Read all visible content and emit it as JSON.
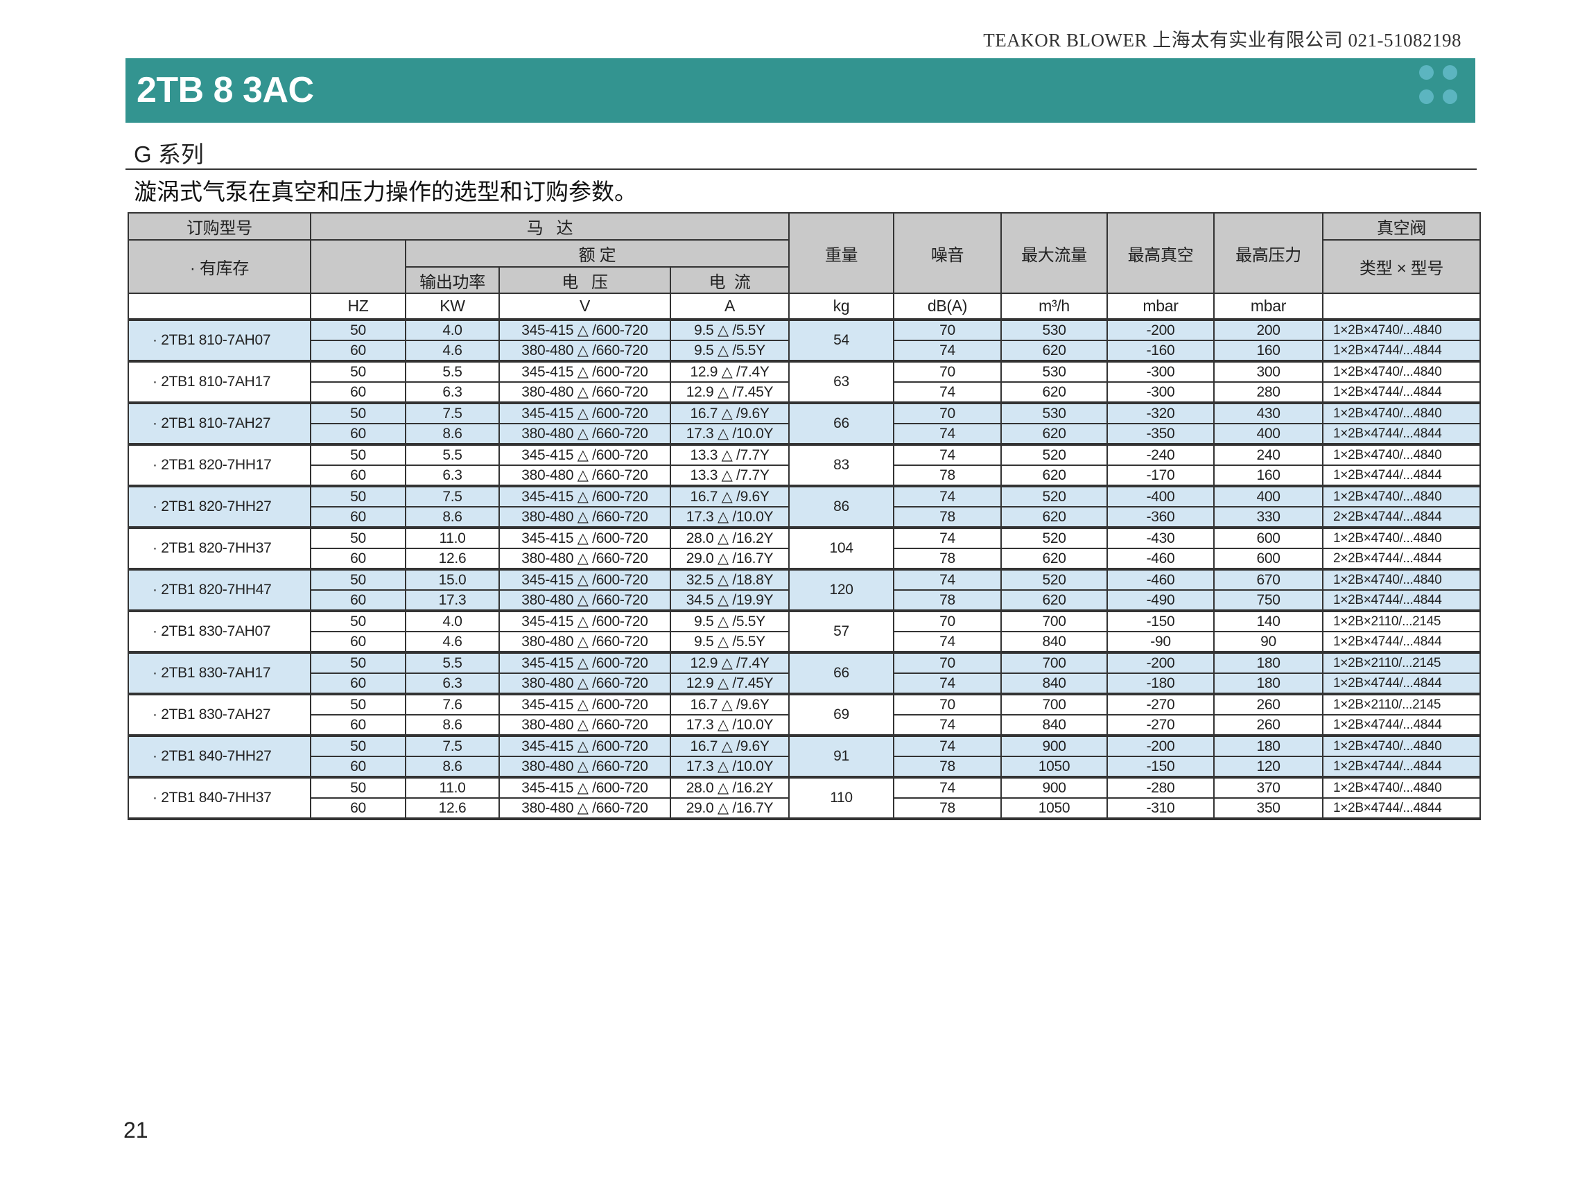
{
  "header": {
    "company": "TEAKOR BLOWER  上海太有实业有限公司   021-51082198",
    "title": "2TB 8 3AC",
    "series": "G 系列",
    "subtitle": "漩涡式气泵在真空和压力操作的选型和订购参数。",
    "accent_color": "#339490",
    "row_highlight_color": "#d3e6f3"
  },
  "table": {
    "head": {
      "order_model": "订购型号",
      "motor": "马   达",
      "in_stock": "· 有库存",
      "rated": "额 定",
      "power": "输出功率",
      "voltage": "电   压",
      "current": "电  流",
      "weight": "重量",
      "noise": "噪音",
      "max_flow": "最大流量",
      "max_vacuum": "最高真空",
      "max_pressure": "最高压力",
      "valve": "真空阀",
      "valve_type": "类型 × 型号"
    },
    "units": [
      "",
      "HZ",
      "KW",
      "V",
      "A",
      "kg",
      "dB(A)",
      "m³/h",
      "mbar",
      "mbar",
      ""
    ],
    "groups": [
      {
        "model": "· 2TB1 810-7AH07",
        "weight": "54",
        "rows": [
          [
            "50",
            "4.0",
            "345-415 △ /600-720",
            "9.5 △ /5.5Y",
            "70",
            "530",
            "-200",
            "200",
            "1×2B×4740/...4840"
          ],
          [
            "60",
            "4.6",
            "380-480 △ /660-720",
            "9.5 △ /5.5Y",
            "74",
            "620",
            "-160",
            "160",
            "1×2B×4744/...4844"
          ]
        ]
      },
      {
        "model": "· 2TB1 810-7AH17",
        "weight": "63",
        "rows": [
          [
            "50",
            "5.5",
            "345-415 △ /600-720",
            "12.9 △ /7.4Y",
            "70",
            "530",
            "-300",
            "300",
            "1×2B×4740/...4840"
          ],
          [
            "60",
            "6.3",
            "380-480 △ /660-720",
            "12.9 △ /7.45Y",
            "74",
            "620",
            "-300",
            "280",
            "1×2B×4744/...4844"
          ]
        ]
      },
      {
        "model": "· 2TB1 810-7AH27",
        "weight": "66",
        "rows": [
          [
            "50",
            "7.5",
            "345-415 △ /600-720",
            "16.7 △ /9.6Y",
            "70",
            "530",
            "-320",
            "430",
            "1×2B×4740/...4840"
          ],
          [
            "60",
            "8.6",
            "380-480 △ /660-720",
            "17.3 △ /10.0Y",
            "74",
            "620",
            "-350",
            "400",
            "1×2B×4744/...4844"
          ]
        ]
      },
      {
        "model": "· 2TB1 820-7HH17",
        "weight": "83",
        "rows": [
          [
            "50",
            "5.5",
            "345-415 △ /600-720",
            "13.3 △ /7.7Y",
            "74",
            "520",
            "-240",
            "240",
            "1×2B×4740/...4840"
          ],
          [
            "60",
            "6.3",
            "380-480 △ /660-720",
            "13.3 △ /7.7Y",
            "78",
            "620",
            "-170",
            "160",
            "1×2B×4744/...4844"
          ]
        ]
      },
      {
        "model": "· 2TB1 820-7HH27",
        "weight": "86",
        "rows": [
          [
            "50",
            "7.5",
            "345-415 △ /600-720",
            "16.7 △ /9.6Y",
            "74",
            "520",
            "-400",
            "400",
            "1×2B×4740/...4840"
          ],
          [
            "60",
            "8.6",
            "380-480 △ /660-720",
            "17.3 △ /10.0Y",
            "78",
            "620",
            "-360",
            "330",
            "2×2B×4744/...4844"
          ]
        ]
      },
      {
        "model": "· 2TB1 820-7HH37",
        "weight": "104",
        "rows": [
          [
            "50",
            "11.0",
            "345-415 △ /600-720",
            "28.0 △ /16.2Y",
            "74",
            "520",
            "-430",
            "600",
            "1×2B×4740/...4840"
          ],
          [
            "60",
            "12.6",
            "380-480 △ /660-720",
            "29.0 △ /16.7Y",
            "78",
            "620",
            "-460",
            "600",
            "2×2B×4744/...4844"
          ]
        ]
      },
      {
        "model": "· 2TB1 820-7HH47",
        "weight": "120",
        "rows": [
          [
            "50",
            "15.0",
            "345-415 △ /600-720",
            "32.5 △ /18.8Y",
            "74",
            "520",
            "-460",
            "670",
            "1×2B×4740/...4840"
          ],
          [
            "60",
            "17.3",
            "380-480 △ /660-720",
            "34.5 △ /19.9Y",
            "78",
            "620",
            "-490",
            "750",
            "1×2B×4744/...4844"
          ]
        ]
      },
      {
        "model": "· 2TB1 830-7AH07",
        "weight": "57",
        "rows": [
          [
            "50",
            "4.0",
            "345-415 △ /600-720",
            "9.5 △ /5.5Y",
            "70",
            "700",
            "-150",
            "140",
            "1×2B×2110/...2145"
          ],
          [
            "60",
            "4.6",
            "380-480 △ /660-720",
            "9.5 △ /5.5Y",
            "74",
            "840",
            "-90",
            "90",
            "1×2B×4744/...4844"
          ]
        ]
      },
      {
        "model": "· 2TB1 830-7AH17",
        "weight": "66",
        "rows": [
          [
            "50",
            "5.5",
            "345-415 △ /600-720",
            "12.9 △ /7.4Y",
            "70",
            "700",
            "-200",
            "180",
            "1×2B×2110/...2145"
          ],
          [
            "60",
            "6.3",
            "380-480 △ /660-720",
            "12.9 △ /7.45Y",
            "74",
            "840",
            "-180",
            "180",
            "1×2B×4744/...4844"
          ]
        ]
      },
      {
        "model": "· 2TB1 830-7AH27",
        "weight": "69",
        "rows": [
          [
            "50",
            "7.6",
            "345-415 △ /600-720",
            "16.7 △ /9.6Y",
            "70",
            "700",
            "-270",
            "260",
            "1×2B×2110/...2145"
          ],
          [
            "60",
            "8.6",
            "380-480 △ /660-720",
            "17.3 △ /10.0Y",
            "74",
            "840",
            "-270",
            "260",
            "1×2B×4744/...4844"
          ]
        ]
      },
      {
        "model": "· 2TB1 840-7HH27",
        "weight": "91",
        "rows": [
          [
            "50",
            "7.5",
            "345-415 △ /600-720",
            "16.7 △ /9.6Y",
            "74",
            "900",
            "-200",
            "180",
            "1×2B×4740/...4840"
          ],
          [
            "60",
            "8.6",
            "380-480 △ /660-720",
            "17.3 △ /10.0Y",
            "78",
            "1050",
            "-150",
            "120",
            "1×2B×4744/...4844"
          ]
        ]
      },
      {
        "model": "· 2TB1 840-7HH37",
        "weight": "110",
        "rows": [
          [
            "50",
            "11.0",
            "345-415 △ /600-720",
            "28.0 △ /16.2Y",
            "74",
            "900",
            "-280",
            "370",
            "1×2B×4740/...4840"
          ],
          [
            "60",
            "12.6",
            "380-480 △ /660-720",
            "29.0 △ /16.7Y",
            "78",
            "1050",
            "-310",
            "350",
            "1×2B×4744/...4844"
          ]
        ]
      }
    ]
  },
  "footer": {
    "page_number": "21"
  }
}
